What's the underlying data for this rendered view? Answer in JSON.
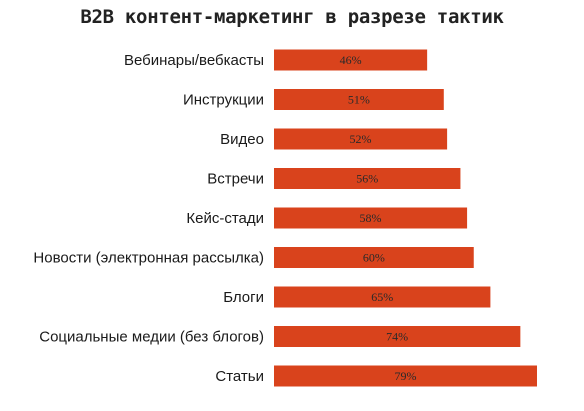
{
  "chart_data": {
    "type": "bar",
    "orientation": "horizontal",
    "title": "B2B контент-маркетинг в разрезе тактик",
    "categories": [
      "Вебинары/вебкасты",
      "Инструкции",
      "Видео",
      "Встречи",
      "Кейс-стади",
      "Новости (электронная рассылка)",
      "Блоги",
      "Социальные медии (без блогов)",
      "Статьи"
    ],
    "values": [
      46,
      51,
      52,
      56,
      58,
      60,
      65,
      74,
      79
    ],
    "value_labels": [
      "46%",
      "51%",
      "52%",
      "56%",
      "58%",
      "60%",
      "65%",
      "74%",
      "79%"
    ],
    "value_unit": "%",
    "xlim": [
      0,
      79
    ],
    "grid": false,
    "legend": "none",
    "bar_color": "#d9431c"
  }
}
